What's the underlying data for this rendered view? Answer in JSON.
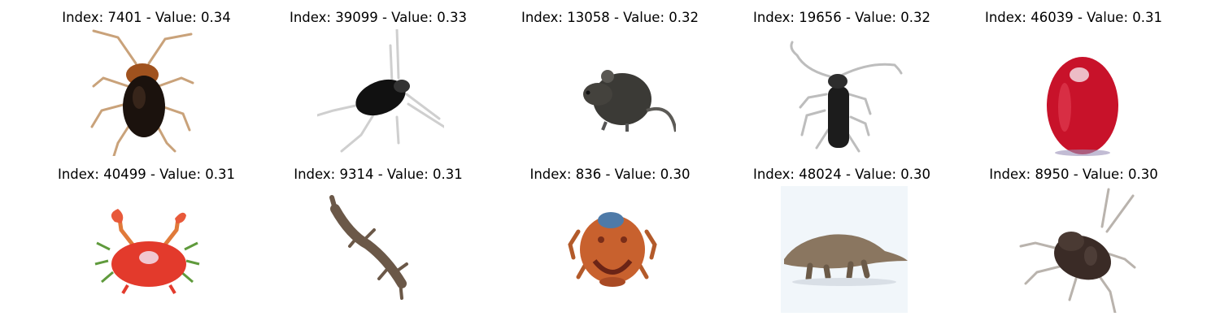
{
  "grid": {
    "items": [
      {
        "title": "Index: 7401 - Value: 0.34",
        "icon": "cockroach-icon"
      },
      {
        "title": "Index: 39099 - Value: 0.33",
        "icon": "insect-icon"
      },
      {
        "title": "Index: 13058 - Value: 0.32",
        "icon": "mouse-icon"
      },
      {
        "title": "Index: 19656 - Value: 0.32",
        "icon": "beetle-icon"
      },
      {
        "title": "Index: 46039 - Value: 0.31",
        "icon": "apple-icon"
      },
      {
        "title": "Index: 40499 - Value: 0.31",
        "icon": "crab-icon"
      },
      {
        "title": "Index: 9314 - Value: 0.31",
        "icon": "lizard-icon"
      },
      {
        "title": "Index: 836 - Value: 0.30",
        "icon": "crab-icon"
      },
      {
        "title": "Index: 48024 - Value: 0.30",
        "icon": "dinosaur-icon"
      },
      {
        "title": "Index: 8950 - Value: 0.30",
        "icon": "cockroach-icon"
      }
    ]
  }
}
